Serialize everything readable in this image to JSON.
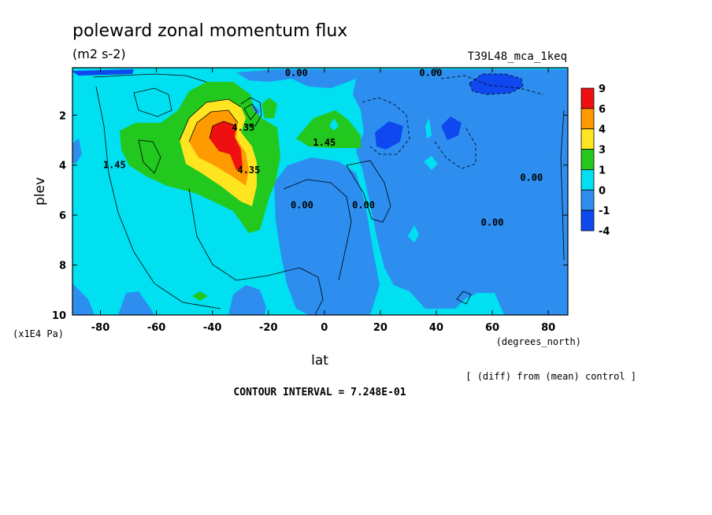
{
  "chart_data": {
    "type": "heatmap",
    "title": "poleward zonal momentum flux",
    "units": "(m2 s-2)",
    "run_label": "T39L48_mca_1keq",
    "xlabel": "lat",
    "xlabel_units": "(degrees_north)",
    "ylabel": "plev",
    "ylabel_units": "(x1E4 Pa)",
    "xlim": [
      -90,
      87
    ],
    "ylim": [
      10,
      0.1
    ],
    "x_ticks": [
      -80,
      -60,
      -40,
      -20,
      0,
      20,
      40,
      60,
      80
    ],
    "y_ticks": [
      2,
      4,
      6,
      8,
      10
    ],
    "diff_note": "[ (diff) from (mean) control ]",
    "contour_interval_text": "CONTOUR INTERVAL = 7.248E-01",
    "colorbar": {
      "labels": [
        "9",
        "6",
        "4",
        "3",
        "1",
        "0",
        "-1",
        "-4"
      ],
      "colors": [
        "#ee1010",
        "#ff9a00",
        "#ffe520",
        "#22c81e",
        "#00e0f0",
        "#2d8ef0",
        "#1048f0"
      ]
    },
    "contour_labels": [
      {
        "text": "0.00",
        "lat": -10,
        "plev": 0.3
      },
      {
        "text": "0.00",
        "lat": 38,
        "plev": 0.3
      },
      {
        "text": "1.45",
        "lat": -75,
        "plev": 4.0
      },
      {
        "text": "1.45",
        "lat": 0,
        "plev": 3.1
      },
      {
        "text": "4.35",
        "lat": -27,
        "plev": 4.2
      },
      {
        "text": "4.35",
        "lat": -29,
        "plev": 2.5
      },
      {
        "text": "0.00",
        "lat": -8,
        "plev": 5.6
      },
      {
        "text": "0.00",
        "lat": 14,
        "plev": 5.6
      },
      {
        "text": "0.00",
        "lat": 60,
        "plev": 6.3
      },
      {
        "text": "0.00",
        "lat": 74,
        "plev": 4.5
      }
    ]
  }
}
